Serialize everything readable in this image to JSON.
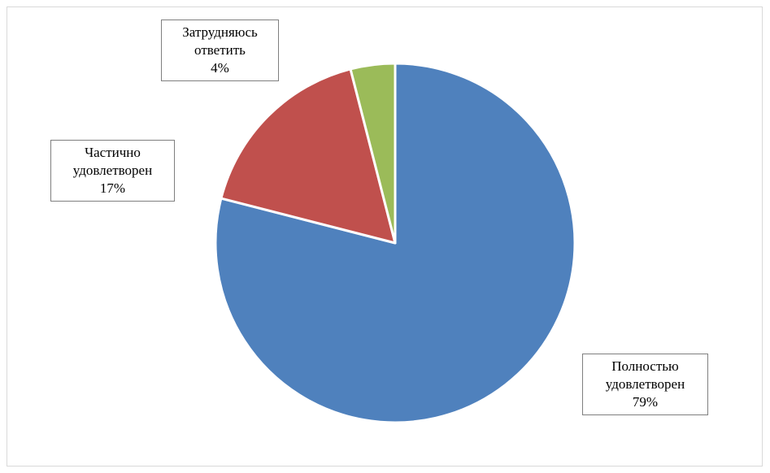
{
  "chart_data": {
    "type": "pie",
    "title": "",
    "start_angle": "12 o'clock",
    "direction": "clockwise",
    "legend": "none",
    "slices": [
      {
        "name_lines": [
          "Полностью",
          "удовлетворен"
        ],
        "value": 79,
        "value_label": "79%",
        "color": "#4f81bd"
      },
      {
        "name_lines": [
          "Частично",
          "удовлетворен"
        ],
        "value": 17,
        "value_label": "17%",
        "color": "#c0504d"
      },
      {
        "name_lines": [
          "Затрудняюсь",
          "ответить"
        ],
        "value": 4,
        "value_label": "4%",
        "color": "#9bbb59"
      }
    ]
  }
}
